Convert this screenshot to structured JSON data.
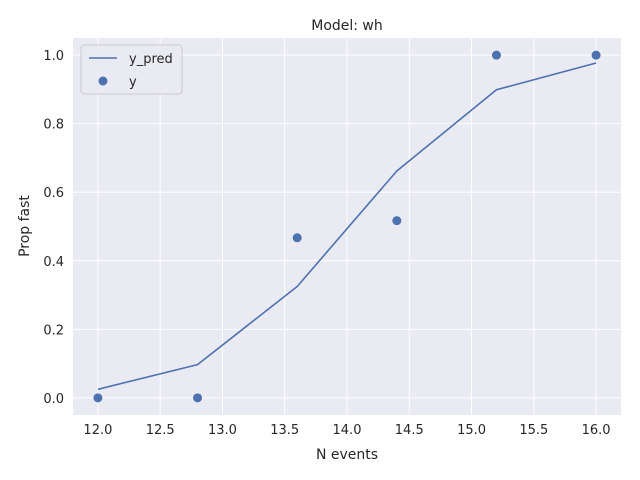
{
  "chart_data": {
    "type": "line",
    "title": "Model: wh",
    "xlabel": "N events",
    "ylabel": "Prop fast",
    "xlim": [
      11.8,
      16.2
    ],
    "ylim": [
      -0.05,
      1.05
    ],
    "xticks": [
      12.0,
      12.5,
      13.0,
      13.5,
      14.0,
      14.5,
      15.0,
      15.5,
      16.0
    ],
    "yticks": [
      0.0,
      0.2,
      0.4,
      0.6,
      0.8,
      1.0
    ],
    "xtick_labels": [
      "12.0",
      "12.5",
      "13.0",
      "13.5",
      "14.0",
      "14.5",
      "15.0",
      "15.5",
      "16.0"
    ],
    "ytick_labels": [
      "0.0",
      "0.2",
      "0.4",
      "0.6",
      "0.8",
      "1.0"
    ],
    "grid": true,
    "legend_position": "top-left",
    "series": [
      {
        "name": "y_pred",
        "type": "line",
        "color": "#4c72b0",
        "x": [
          12.0,
          12.8,
          13.6,
          14.4,
          15.2,
          16.0
        ],
        "y": [
          0.025,
          0.097,
          0.325,
          0.662,
          0.899,
          0.977
        ]
      },
      {
        "name": "y",
        "type": "scatter",
        "color": "#4c72b0",
        "x": [
          12.0,
          12.8,
          13.6,
          14.4,
          15.2,
          16.0
        ],
        "y": [
          0.0,
          0.0,
          0.467,
          0.517,
          1.0,
          1.0
        ]
      }
    ]
  }
}
